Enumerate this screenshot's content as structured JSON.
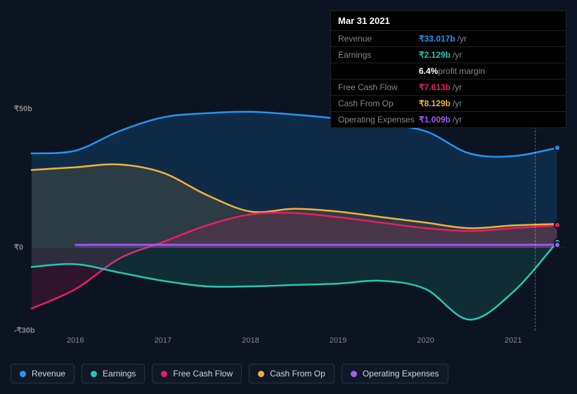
{
  "background_color": "#0d1421",
  "chart": {
    "type": "area",
    "x_years": [
      2015.5,
      2016,
      2016.5,
      2017,
      2017.5,
      2018,
      2018.5,
      2019,
      2019.5,
      2020,
      2020.5,
      2021,
      2021.5
    ],
    "x_labels": [
      2016,
      2017,
      2018,
      2019,
      2020,
      2021
    ],
    "xlim": [
      2015.5,
      2021.6
    ],
    "ylim": [
      -30,
      50
    ],
    "y_ticks": [
      {
        "v": 50,
        "label": "₹50b"
      },
      {
        "v": 0,
        "label": "₹0"
      },
      {
        "v": -30,
        "label": "-₹30b"
      }
    ],
    "vline_year": 2021.25,
    "series": [
      {
        "key": "revenue",
        "name": "Revenue",
        "color": "#2196f3",
        "y": [
          34,
          35,
          42,
          47,
          48.5,
          49,
          48,
          46.5,
          44.5,
          42,
          34,
          33,
          36
        ],
        "fill": "rgba(33,150,243,0.18)"
      },
      {
        "key": "cash_from_op",
        "name": "Cash From Op",
        "color": "#f0b23a",
        "y": [
          28,
          29,
          30,
          27,
          19,
          13,
          14,
          13,
          11,
          9,
          7,
          8,
          8.5
        ],
        "fill": "rgba(240,178,58,0.13)"
      },
      {
        "key": "free_cash_flow",
        "name": "Free Cash Flow",
        "color": "#e91e63",
        "y": [
          -22,
          -15,
          -4,
          2,
          8,
          12,
          12.5,
          11,
          9,
          7,
          6,
          7,
          8
        ],
        "fill": "rgba(233,30,99,0.15)"
      },
      {
        "key": "earnings",
        "name": "Earnings",
        "color": "#26c6b6",
        "y": [
          -7,
          -6,
          -9,
          -12,
          -14,
          -14,
          -13.5,
          -13,
          -12,
          -15,
          -26,
          -16,
          2
        ],
        "fill": "rgba(38,198,182,0.14)"
      },
      {
        "key": "opex",
        "name": "Operating Expenses",
        "color": "#a259ff",
        "y": [
          null,
          1,
          1,
          1,
          1,
          1,
          1,
          1,
          1,
          1,
          1,
          1,
          1
        ],
        "fill": "rgba(162,89,255,0.25)"
      }
    ],
    "line_width": 2.5,
    "plot_bg": "#0d1421"
  },
  "tooltip": {
    "date": "Mar 31 2021",
    "rows": [
      {
        "key": "revenue",
        "label": "Revenue",
        "value": "₹33.017b",
        "suffix": "/yr",
        "color": "#2196f3"
      },
      {
        "key": "earnings",
        "label": "Earnings",
        "value": "₹2.129b",
        "suffix": "/yr",
        "color": "#26c6b6"
      },
      {
        "key": "margin",
        "label": "",
        "value": "6.4%",
        "suffix": "profit margin",
        "color": "#ffffff",
        "sub": true
      },
      {
        "key": "fcf",
        "label": "Free Cash Flow",
        "value": "₹7.613b",
        "suffix": "/yr",
        "color": "#e91e63"
      },
      {
        "key": "cfo",
        "label": "Cash From Op",
        "value": "₹8.129b",
        "suffix": "/yr",
        "color": "#f0b23a"
      },
      {
        "key": "opex",
        "label": "Operating Expenses",
        "value": "₹1.009b",
        "suffix": "/yr",
        "color": "#a259ff"
      }
    ]
  },
  "legend": [
    {
      "key": "revenue",
      "label": "Revenue",
      "color": "#2196f3"
    },
    {
      "key": "earnings",
      "label": "Earnings",
      "color": "#26c6b6"
    },
    {
      "key": "fcf",
      "label": "Free Cash Flow",
      "color": "#e91e63"
    },
    {
      "key": "cfo",
      "label": "Cash From Op",
      "color": "#f0b23a"
    },
    {
      "key": "opex",
      "label": "Operating Expenses",
      "color": "#a259ff"
    }
  ]
}
